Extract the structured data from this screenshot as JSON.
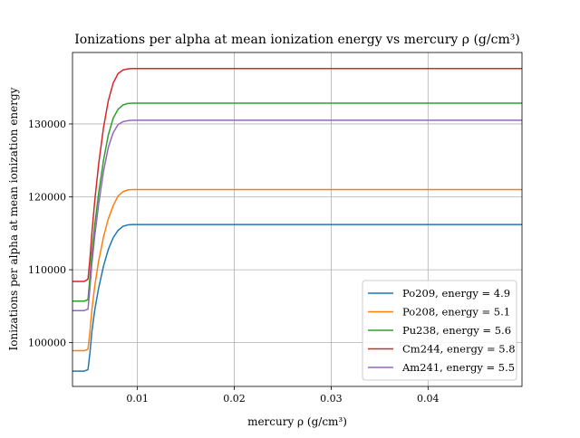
{
  "chart_data": {
    "type": "line",
    "title": "Ionizations per alpha at mean ionization energy vs mercury ρ (g/cm³)",
    "xlabel": "mercury ρ (g/cm³)",
    "ylabel": "Ionizations per alpha at mean ionization energy",
    "xlim": [
      0.0033,
      0.0497
    ],
    "ylim": [
      94000,
      139800
    ],
    "xticks": [
      0.01,
      0.02,
      0.03,
      0.04
    ],
    "xtick_labels": [
      "0.01",
      "0.02",
      "0.03",
      "0.04"
    ],
    "yticks": [
      100000,
      110000,
      120000,
      130000
    ],
    "ytick_labels": [
      "100000",
      "110000",
      "120000",
      "130000"
    ],
    "grid": true,
    "legend_position": "lower right",
    "x": [
      0.0033,
      0.0045,
      0.0049,
      0.0051,
      0.0053,
      0.0056,
      0.006,
      0.0065,
      0.007,
      0.0075,
      0.008,
      0.0085,
      0.009,
      0.0095,
      0.0497
    ],
    "series": [
      {
        "name": "Po209, energy = 4.9",
        "color": "#1f77b4",
        "values": [
          96100,
          96100,
          96300,
          98600,
          101500,
          104500,
          107500,
          110500,
          112800,
          114400,
          115400,
          115950,
          116150,
          116200,
          116200
        ]
      },
      {
        "name": "Po208, energy = 5.1",
        "color": "#ff7f0e",
        "values": [
          98900,
          98900,
          99100,
          101500,
          104500,
          107800,
          111200,
          114500,
          117000,
          118800,
          120100,
          120700,
          120950,
          121000,
          121000
        ]
      },
      {
        "name": "Pu238, energy = 5.6",
        "color": "#2ca02c",
        "values": [
          105700,
          105700,
          105900,
          109000,
          112300,
          116200,
          120500,
          125000,
          128500,
          130800,
          132000,
          132600,
          132800,
          132850,
          132850
        ]
      },
      {
        "name": "Cm244, energy = 5.8",
        "color": "#d62728",
        "values": [
          108400,
          108400,
          108700,
          111500,
          115000,
          119500,
          124500,
          129500,
          133200,
          135600,
          136900,
          137400,
          137550,
          137600,
          137600
        ]
      },
      {
        "name": "Am241, energy = 5.5",
        "color": "#9467bd",
        "values": [
          104400,
          104400,
          104600,
          107500,
          110800,
          114700,
          119000,
          123500,
          126800,
          128800,
          129900,
          130300,
          130450,
          130500,
          130500
        ]
      }
    ]
  }
}
